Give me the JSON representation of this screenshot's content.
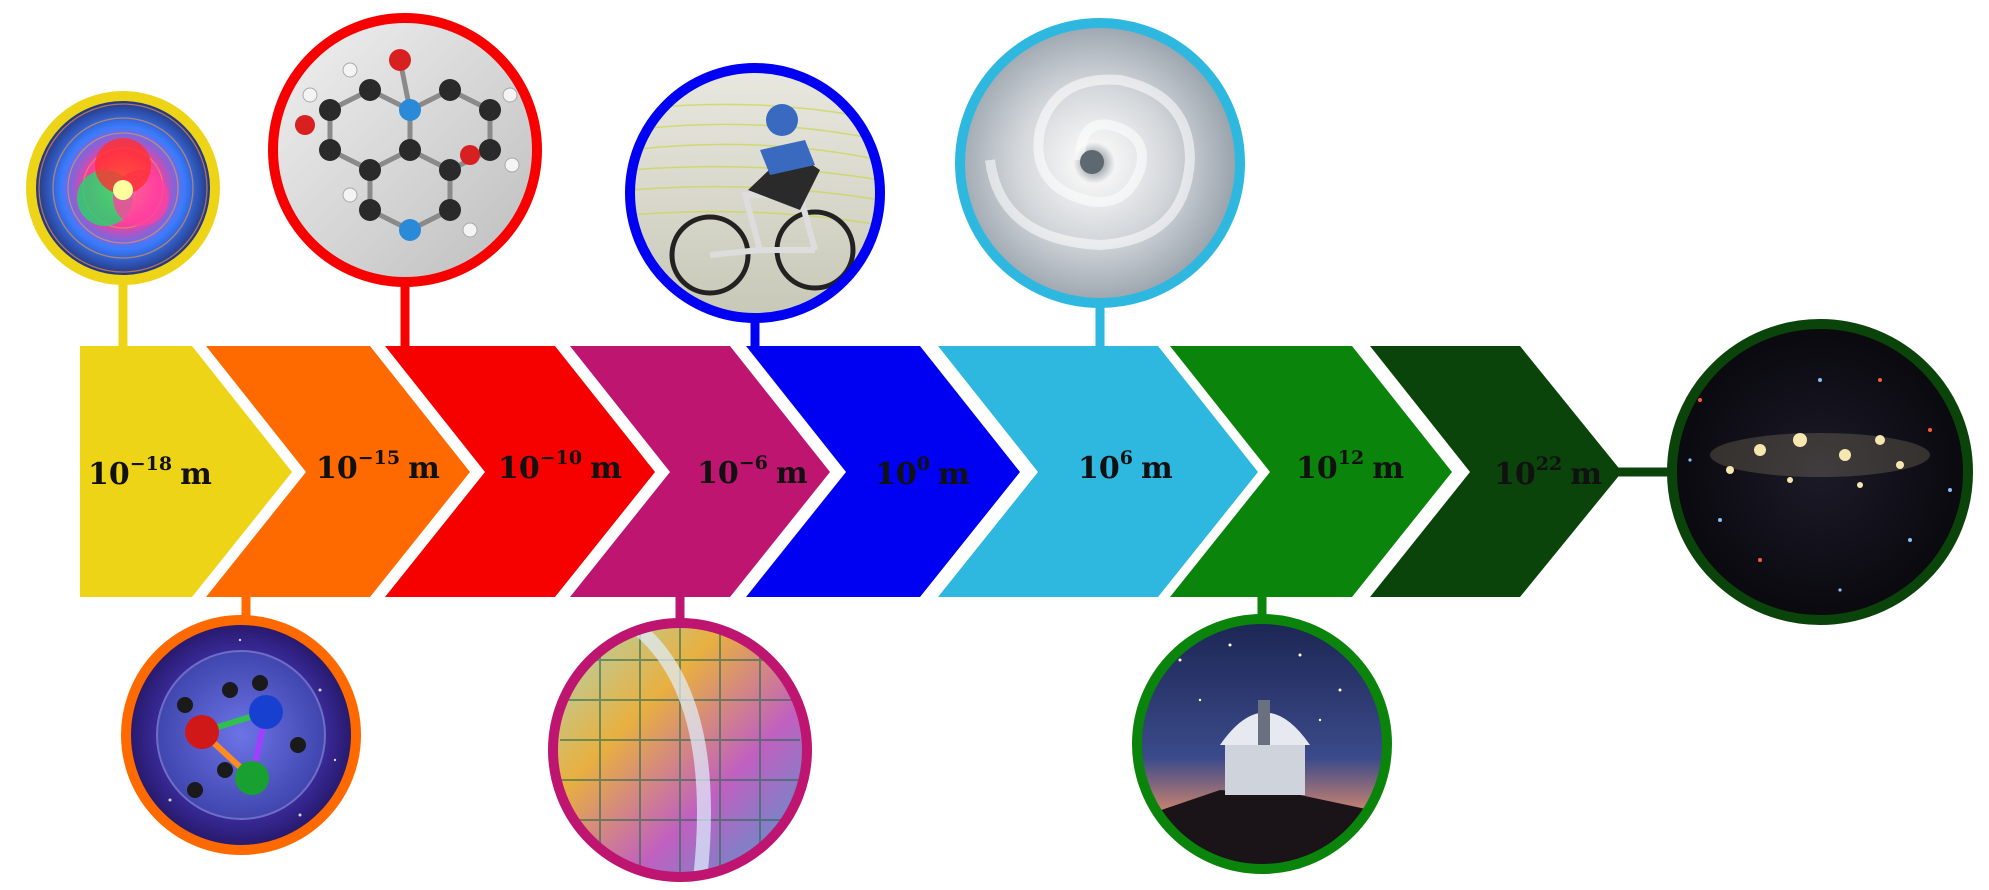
{
  "scale_labels": [
    {
      "base": "10",
      "exp": "−18",
      "unit": "m",
      "color": "#EED416",
      "image": "quark-field-icon",
      "side": "top"
    },
    {
      "base": "10",
      "exp": "−15",
      "unit": "m",
      "color": "#FF6A00",
      "image": "proton-icon",
      "side": "bottom"
    },
    {
      "base": "10",
      "exp": "−10",
      "unit": "m",
      "color": "#F70000",
      "image": "molecule-icon",
      "side": "top"
    },
    {
      "base": "10",
      "exp": "−6",
      "unit": "m",
      "color": "#BE1570",
      "image": "silicon-wafer-icon",
      "side": "bottom"
    },
    {
      "base": "10",
      "exp": "0",
      "unit": "m",
      "color": "#0000F2",
      "image": "cyclist-icon",
      "side": "top"
    },
    {
      "base": "10",
      "exp": "6",
      "unit": "m",
      "color": "#2EB8E0",
      "image": "hurricane-icon",
      "side": "top"
    },
    {
      "base": "10",
      "exp": "12",
      "unit": "m",
      "color": "#0A840A",
      "image": "observatory-icon",
      "side": "bottom"
    },
    {
      "base": "10",
      "exp": "22",
      "unit": "m",
      "color": "#0A440A",
      "image": "galaxy-cluster-icon",
      "side": "right"
    }
  ]
}
